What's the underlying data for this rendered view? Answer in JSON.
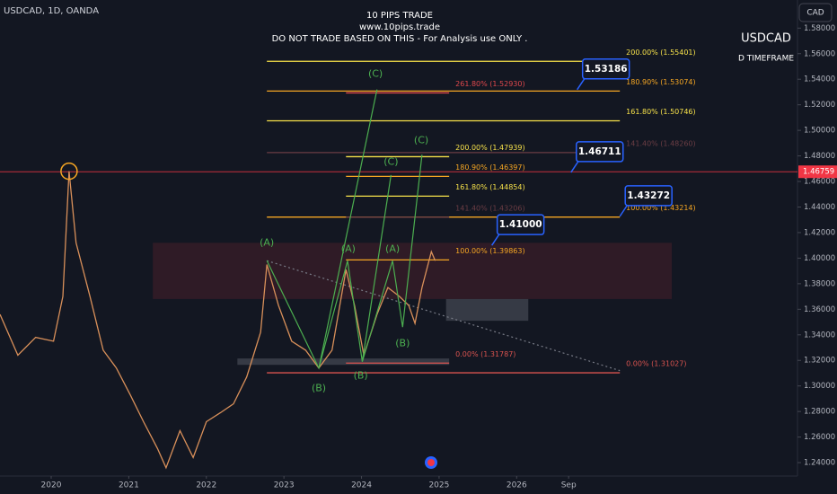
{
  "chart_data": {
    "type": "line",
    "symbol": "USDCAD, 1D, OANDA",
    "title": "10 PIPS TRADE",
    "subtitle": "www.10pips.trade",
    "disclaimer": "DO NOT TRADE BASED ON THIS - For Analysis use ONLY .",
    "pair_label": "USDCAD",
    "timeframe_label": "D TIMEFRAME",
    "currency_button": "CAD",
    "series": [
      {
        "name": "USDCAD",
        "color": "#d9905a",
        "x": [
          2019.34,
          2019.57,
          2019.8,
          2020.03,
          2020.15,
          2020.23,
          2020.32,
          2020.5,
          2020.67,
          2020.84,
          2021.02,
          2021.19,
          2021.37,
          2021.48,
          2021.66,
          2021.83,
          2022.0,
          2022.18,
          2022.35,
          2022.52,
          2022.7,
          2022.78,
          2022.93,
          2023.1,
          2023.28,
          2023.45,
          2023.62,
          2023.8,
          2023.91,
          2024.03,
          2024.2,
          2024.34,
          2024.49,
          2024.61,
          2024.69,
          2024.78,
          2024.9,
          2024.95
        ],
        "values": [
          1.356,
          1.324,
          1.338,
          1.335,
          1.37,
          1.468,
          1.412,
          1.37,
          1.328,
          1.314,
          1.293,
          1.272,
          1.251,
          1.236,
          1.265,
          1.244,
          1.272,
          1.279,
          1.286,
          1.307,
          1.342,
          1.395,
          1.363,
          1.335,
          1.328,
          1.314,
          1.328,
          1.391,
          1.363,
          1.324,
          1.356,
          1.377,
          1.37,
          1.363,
          1.349,
          1.377,
          1.405,
          1.398
        ]
      }
    ],
    "xlim": [
      2019.34,
      2029.62
    ],
    "xticks": [
      2020,
      2021,
      2022,
      2023,
      2024,
      2025,
      2026,
      {
        "value": 2026.67,
        "label": "Sep"
      }
    ],
    "ylim": [
      1.2295,
      1.602
    ],
    "yticks": [
      {
        "value": 1.24,
        "label": "1.24000"
      },
      {
        "value": 1.26,
        "label": "1.26000"
      },
      {
        "value": 1.28,
        "label": "1.28000"
      },
      {
        "value": 1.3,
        "label": "1.30000"
      },
      {
        "value": 1.32,
        "label": "1.32000"
      },
      {
        "value": 1.34,
        "label": "1.34000"
      },
      {
        "value": 1.36,
        "label": "1.36000"
      },
      {
        "value": 1.38,
        "label": "1.38000"
      },
      {
        "value": 1.4,
        "label": "1.40000"
      },
      {
        "value": 1.42,
        "label": "1.42000"
      },
      {
        "value": 1.44,
        "label": "1.44000"
      },
      {
        "value": 1.46,
        "label": "1.46000"
      },
      {
        "value": 1.48,
        "label": "1.48000"
      },
      {
        "value": 1.5,
        "label": "1.50000"
      },
      {
        "value": 1.52,
        "label": "1.52000"
      },
      {
        "value": 1.54,
        "label": "1.54000"
      },
      {
        "value": 1.56,
        "label": "1.56000"
      },
      {
        "value": 1.58,
        "label": "1.58000"
      }
    ],
    "price_line": {
      "label": "1.46759",
      "value": 1.46759,
      "color": "#f23645"
    },
    "zones": [
      {
        "x": [
          2021.31,
          2028.0
        ],
        "y": [
          1.368,
          1.412
        ],
        "color": "rgba(242,54,69,0.13)"
      },
      {
        "x": [
          2025.09,
          2026.15
        ],
        "y": [
          1.351,
          1.368
        ],
        "color": "rgba(120,123,134,0.35)"
      },
      {
        "x": [
          2022.4,
          2025.13
        ],
        "y": [
          1.3165,
          1.3215
        ],
        "color": "rgba(120,123,134,0.35)"
      }
    ],
    "trendline": {
      "x": [
        2022.78,
        2027.33
      ],
      "y": [
        1.398,
        1.312
      ],
      "color": "#787b86"
    },
    "fib_levels": [
      {
        "label": "200.00% (1.55401)",
        "value": 1.55401,
        "x": [
          2022.78,
          2027.33
        ],
        "color": "#f7e24a"
      },
      {
        "label": "180.90% (1.53074)",
        "value": 1.53074,
        "x": [
          2022.78,
          2027.33
        ],
        "color": "#f5a623"
      },
      {
        "label": "161.80% (1.50746)",
        "value": 1.50746,
        "x": [
          2022.78,
          2027.33
        ],
        "color": "#f7e24a"
      },
      {
        "label": "141.40% (1.48260)",
        "value": 1.4826,
        "x": [
          2022.78,
          2027.33
        ],
        "color": "#6b3d44"
      },
      {
        "label": "100.00% (1.43214)",
        "value": 1.43214,
        "x": [
          2022.78,
          2027.33
        ],
        "color": "#f5a623"
      },
      {
        "label": "0.00% (1.31027)",
        "value": 1.31027,
        "x": [
          2022.78,
          2027.33
        ],
        "color": "#d9534f"
      },
      {
        "label": "261.80% (1.52930)",
        "value": 1.5293,
        "x": [
          2023.8,
          2025.13
        ],
        "color": "#e0484c"
      },
      {
        "label": "200.00% (1.47939)",
        "value": 1.47939,
        "x": [
          2023.8,
          2025.13
        ],
        "color": "#f7e24a"
      },
      {
        "label": "180.90% (1.46397)",
        "value": 1.46397,
        "x": [
          2023.8,
          2025.13
        ],
        "color": "#f5a623"
      },
      {
        "label": "161.80% (1.44854)",
        "value": 1.44854,
        "x": [
          2023.8,
          2025.13
        ],
        "color": "#f7e24a"
      },
      {
        "label": "141.40% (1.43206)",
        "value": 1.43206,
        "x": [
          2023.8,
          2025.13
        ],
        "color": "#6b3d44"
      },
      {
        "label": "100.00% (1.39863)",
        "value": 1.39863,
        "x": [
          2023.8,
          2025.13
        ],
        "color": "#f5a623"
      },
      {
        "label": "0.00% (1.31787)",
        "value": 1.31787,
        "x": [
          2023.8,
          2025.13
        ],
        "color": "#d9534f"
      }
    ],
    "wave_lines": [
      {
        "x": [
          2022.78,
          2023.45,
          2024.2
        ],
        "y": [
          1.398,
          1.314,
          1.532
        ]
      },
      {
        "x": [
          2023.45,
          2023.82,
          2024.01,
          2024.38
        ],
        "y": [
          1.314,
          1.398,
          1.319,
          1.465
        ]
      },
      {
        "x": [
          2024.01,
          2024.4,
          2024.53,
          2024.78
        ],
        "y": [
          1.319,
          1.398,
          1.346,
          1.481
        ]
      }
    ],
    "wave_color": "#4caf50",
    "wave_labels": [
      {
        "text": "(A)",
        "x": 2022.78,
        "y": 1.412
      },
      {
        "text": "(B)",
        "x": 2023.45,
        "y": 1.298
      },
      {
        "text": "(C)",
        "x": 2024.18,
        "y": 1.544
      },
      {
        "text": "(A)",
        "x": 2023.83,
        "y": 1.407
      },
      {
        "text": "(B)",
        "x": 2023.99,
        "y": 1.308
      },
      {
        "text": "(C)",
        "x": 2024.38,
        "y": 1.475
      },
      {
        "text": "(A)",
        "x": 2024.4,
        "y": 1.407
      },
      {
        "text": "(B)",
        "x": 2024.53,
        "y": 1.333
      },
      {
        "text": "(C)",
        "x": 2024.77,
        "y": 1.492
      }
    ],
    "callouts": [
      {
        "label": "1.53186",
        "value": 1.53186,
        "x": 2026.78
      },
      {
        "label": "1.46711",
        "value": 1.46711,
        "x": 2026.7
      },
      {
        "label": "1.43272",
        "value": 1.43272,
        "x": 2027.33
      },
      {
        "label": "1.41000",
        "value": 1.41,
        "x": 2025.68
      }
    ]
  }
}
